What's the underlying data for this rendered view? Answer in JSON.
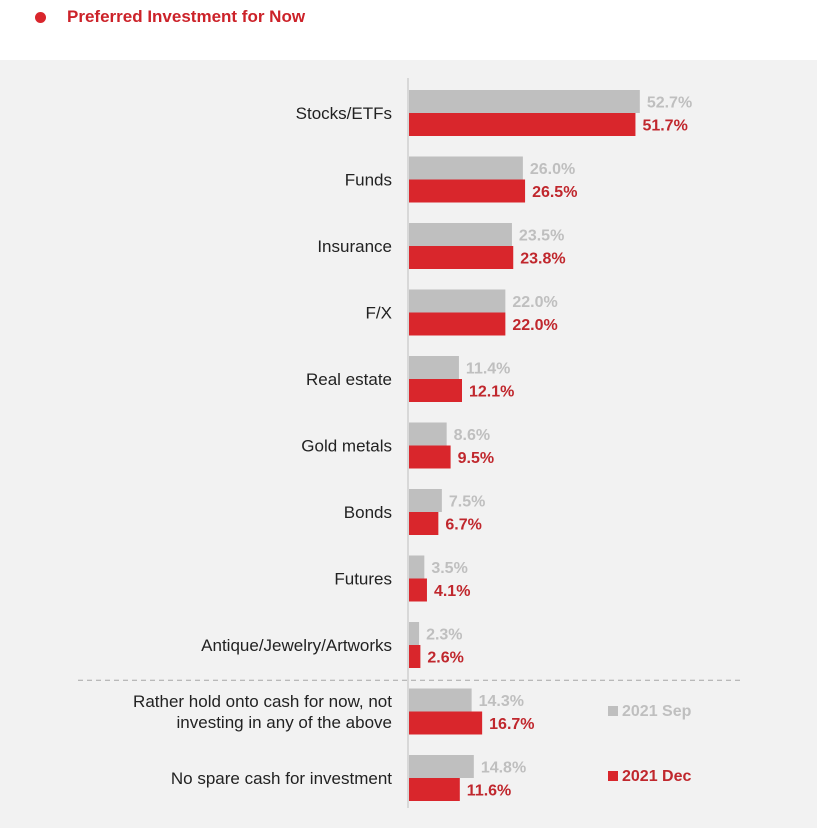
{
  "header": {
    "title": "Preferred Investment for Now"
  },
  "colors": {
    "title": "#cc2229",
    "series_sep": "#bfbfbf",
    "series_dec": "#d9262c",
    "label_sep": "#bfbfbf",
    "label_dec": "#c0272d",
    "axis": "#bfbfbf",
    "panel": "#f2f2f2"
  },
  "chart_data": {
    "type": "bar",
    "orientation": "horizontal",
    "title": "Preferred Investment for Now",
    "unit": "%",
    "categories": [
      [
        "Stocks/ETFs"
      ],
      [
        "Funds"
      ],
      [
        "Insurance"
      ],
      [
        "F/X"
      ],
      [
        "Real estate"
      ],
      [
        "Gold metals"
      ],
      [
        "Bonds"
      ],
      [
        "Futures"
      ],
      [
        "Antique/Jewelry/Artworks"
      ],
      [
        "Rather hold onto cash for now, not",
        "investing in any of the above"
      ],
      [
        "No spare cash for investment"
      ]
    ],
    "series": [
      {
        "name": "2021 Sep",
        "values": [
          52.7,
          26.0,
          23.5,
          22.0,
          11.4,
          8.6,
          7.5,
          3.5,
          2.3,
          14.3,
          14.8
        ],
        "labels": [
          "52.7%",
          "26.0%",
          "23.5%",
          "22.0%",
          "11.4%",
          "8.6%",
          "7.5%",
          "3.5%",
          "2.3%",
          "14.3%",
          "14.8%"
        ]
      },
      {
        "name": "2021 Dec",
        "values": [
          51.7,
          26.5,
          23.8,
          22.0,
          12.1,
          9.5,
          6.7,
          4.1,
          2.6,
          16.7,
          11.6
        ],
        "labels": [
          "51.7%",
          "26.5%",
          "23.8%",
          "22.0%",
          "12.1%",
          "9.5%",
          "6.7%",
          "4.1%",
          "2.6%",
          "16.7%",
          "11.6%"
        ]
      }
    ],
    "separator_after_index": 8,
    "legend": {
      "position": "right",
      "items": [
        {
          "label": "2021 Sep",
          "series": 0
        },
        {
          "label": "2021 Dec",
          "series": 1
        }
      ]
    },
    "grid": false
  }
}
